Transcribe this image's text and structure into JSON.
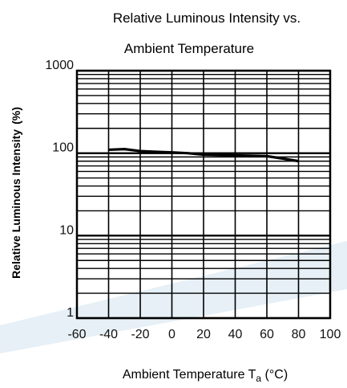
{
  "chart_data": {
    "type": "line",
    "title": [
      "Relative Luminous Intensity vs.",
      "Ambient Temperature"
    ],
    "xlabel": "Ambient Temperature T",
    "xlabel_sub": "a",
    "xlabel_unit": " (°C)",
    "ylabel": "Relative Luminous Intensity",
    "ylabel_unit": "(%)",
    "y_scale": "log",
    "xlim": [
      -60,
      100
    ],
    "ylim": [
      1,
      1000
    ],
    "x_ticks": [
      -60,
      -40,
      -20,
      0,
      20,
      40,
      60,
      80,
      100
    ],
    "x_tick_labels": [
      "-60",
      "-40",
      "-20",
      "0",
      "20",
      "40",
      "60",
      "80",
      "100"
    ],
    "y_ticks": [
      1,
      10,
      100,
      1000
    ],
    "y_tick_labels": [
      "1",
      "10",
      "100",
      "1000"
    ],
    "grid": true,
    "series": [
      {
        "x": [
          -40,
          -30,
          -20,
          -10,
          0,
          10,
          20,
          30,
          40,
          50,
          60,
          70,
          80
        ],
        "y": [
          110,
          112,
          106,
          104,
          102,
          100,
          96,
          95,
          94,
          93,
          92,
          86,
          80
        ]
      }
    ]
  },
  "colors": {
    "grid": "#000000",
    "line": "#000000",
    "watermark": "#b8d4e6"
  }
}
